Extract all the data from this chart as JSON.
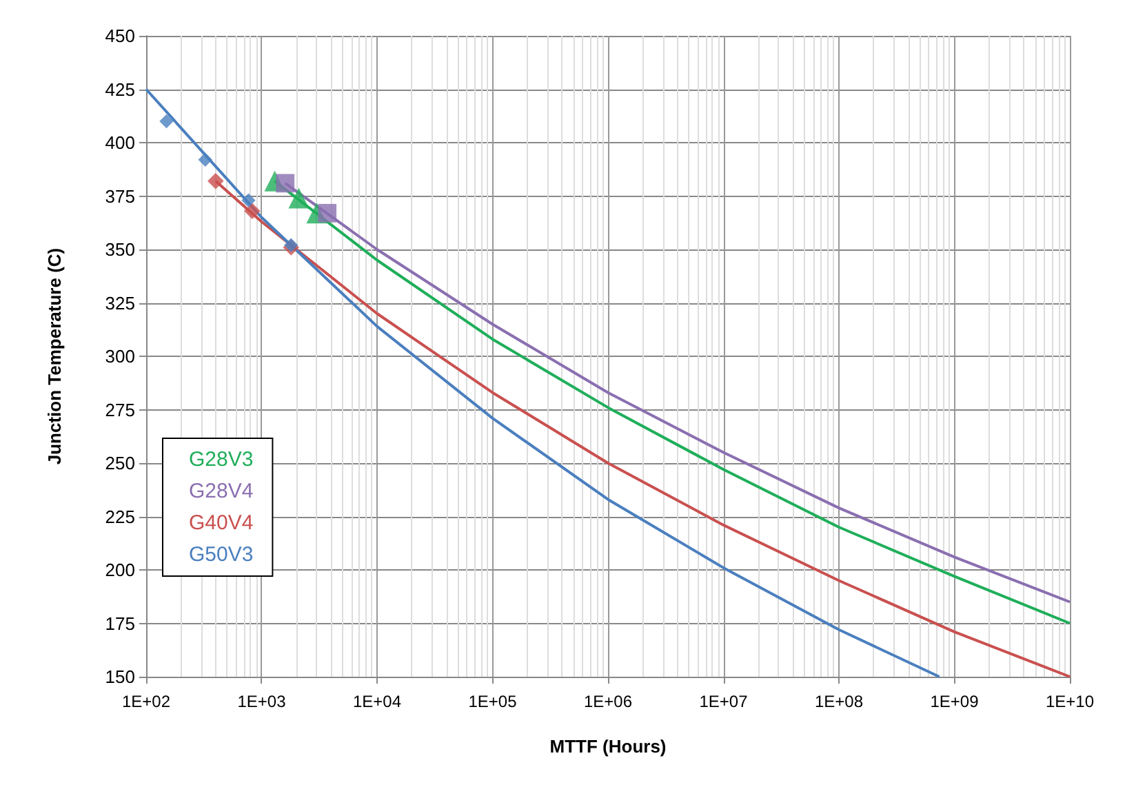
{
  "chart_data": {
    "type": "scatter",
    "xlabel": "MTTF (Hours)",
    "ylabel": "Junction Temperature (C)",
    "log": "x",
    "grid": true,
    "legend": "left",
    "xlim": [
      100,
      10000000000
    ],
    "xticks": [
      {
        "value": 100,
        "label": "1E+02"
      },
      {
        "value": 1000,
        "label": "1E+03"
      },
      {
        "value": 10000,
        "label": "1E+04"
      },
      {
        "value": 100000,
        "label": "1E+05"
      },
      {
        "value": 1000000,
        "label": "1E+06"
      },
      {
        "value": 10000000,
        "label": "1E+07"
      },
      {
        "value": 100000000,
        "label": "1E+08"
      },
      {
        "value": 1000000000,
        "label": "1E+09"
      },
      {
        "value": 10000000000,
        "label": "1E+10"
      }
    ],
    "ylim": [
      150,
      450
    ],
    "yticks": [
      150,
      175,
      200,
      225,
      250,
      275,
      300,
      325,
      350,
      375,
      400,
      425,
      450
    ],
    "series": [
      {
        "name": "G28V3",
        "color": "#1fae5a",
        "marker": "triangle",
        "x": [
          1300,
          2100,
          3000
        ],
        "values": [
          382,
          374,
          367
        ]
      },
      {
        "name": "G28V4",
        "color": "#8a6fb0",
        "marker": "square",
        "x": [
          1600,
          3700
        ],
        "values": [
          381,
          367
        ]
      },
      {
        "name": "G40V4",
        "color": "#c9504f",
        "marker": "diamond",
        "x": [
          400,
          830,
          1800
        ],
        "values": [
          382,
          368,
          351
        ]
      },
      {
        "name": "G50V3",
        "color": "#4a7fbf",
        "marker": "diamond",
        "x": [
          150,
          325,
          770,
          1800
        ],
        "values": [
          410,
          392,
          373,
          352
        ]
      },
      {
        "type": "line",
        "color": "#1fae5a",
        "marker": "none",
        "x": [
          1300,
          10000,
          100000,
          1000000,
          10000000,
          100000000,
          1000000000,
          10000000000
        ],
        "values": [
          382,
          345,
          308,
          276,
          247,
          220,
          197,
          175
        ]
      },
      {
        "type": "line",
        "color": "#8a6fb0",
        "marker": "none",
        "x": [
          1600,
          10000,
          100000,
          1000000,
          10000000,
          100000000,
          1000000000,
          10000000000
        ],
        "values": [
          381,
          350,
          315,
          283,
          255,
          229,
          206,
          185
        ]
      },
      {
        "type": "line",
        "color": "#c9504f",
        "marker": "none",
        "x": [
          400,
          1000,
          10000,
          100000,
          1000000,
          10000000,
          100000000,
          1000000000,
          10000000000
        ],
        "values": [
          382,
          363,
          320,
          283,
          250,
          221,
          195,
          171,
          150
        ]
      },
      {
        "type": "line",
        "color": "#4a7fbf",
        "marker": "none",
        "x": [
          100,
          1000,
          10000,
          100000,
          1000000,
          10000000,
          100000000,
          740000000
        ],
        "values": [
          425,
          365,
          314,
          271,
          233,
          201,
          172,
          150
        ]
      }
    ]
  }
}
